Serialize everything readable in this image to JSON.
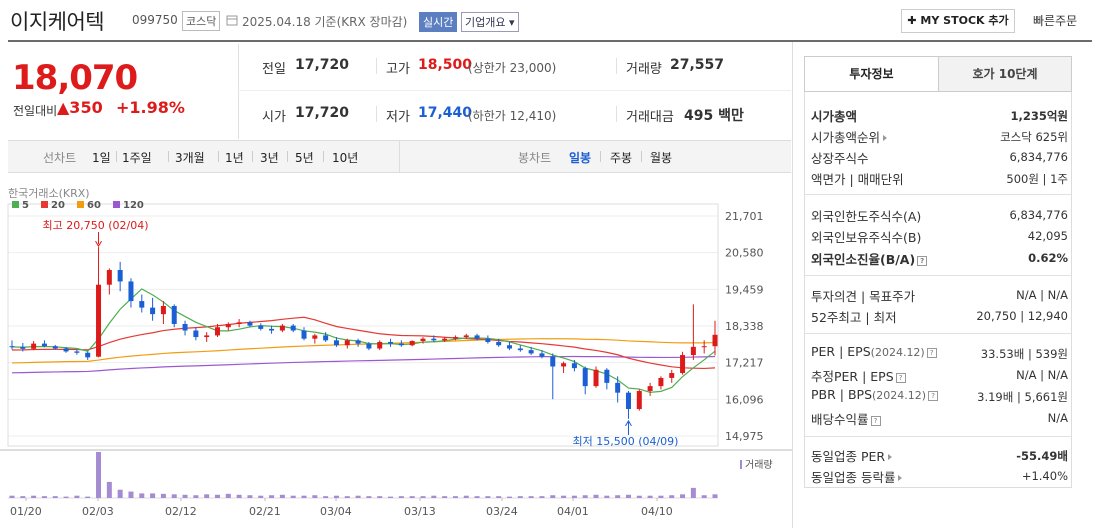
{
  "header": {
    "company": "이지케어텍",
    "code": "099750",
    "market_badge": "코스닥",
    "date_text": "2025.04.18 기준(KRX 장마감)",
    "realtime_badge": "실시간",
    "overview_badge": "기업개요 ▾",
    "mystock_button": "✚ MY STOCK 추가",
    "quick_order": "빠른주문"
  },
  "price": {
    "current": "18,070",
    "change_label": "전일대비",
    "change_value": "▲350",
    "change_pct": "+1.98%"
  },
  "quote": {
    "prev_close_label": "전일",
    "prev_close": "17,720",
    "high_label": "고가",
    "high": "18,500",
    "upper_limit": "(상한가 23,000)",
    "volume_label": "거래량",
    "volume": "27,557",
    "open_label": "시가",
    "open": "17,720",
    "low_label": "저가",
    "low": "17,440",
    "lower_limit": "(하한가 12,410)",
    "amount_label": "거래대금",
    "amount": "495 백만"
  },
  "periods": {
    "line_chart_label": "선차트",
    "line_items": [
      "1일",
      "1주일",
      "3개월",
      "1년",
      "3년",
      "5년",
      "10년"
    ],
    "candle_chart_label": "봉차트",
    "candle_items": [
      "일봉",
      "주봉",
      "월봉"
    ]
  },
  "tabs": {
    "invest": "투자정보",
    "orderbook": "호가 10단계"
  },
  "info": {
    "mcap_label": "시가총액",
    "mcap": "1,235억원",
    "mcap_rank_label": "시가총액순위",
    "mcap_rank": "코스닥 625위",
    "shares_label": "상장주식수",
    "shares": "6,834,776",
    "par_label": "액면가 | 매매단위",
    "par": "500원 | 1주",
    "foreign_limit_label": "외국인한도주식수(A)",
    "foreign_limit": "6,834,776",
    "foreign_hold_label": "외국인보유주식수(B)",
    "foreign_hold": "42,095",
    "foreign_rate_label": "외국인소진율(B/A)",
    "foreign_rate": "0.62%",
    "opinion_label": "투자의견 | 목표주가",
    "opinion": "N/A | N/A",
    "w52_label": "52주최고 | 최저",
    "w52": "20,750 | 12,940",
    "per_label": "PER | EPS",
    "per_period": "(2024.12)",
    "per": "33.53배 | 539원",
    "est_per_label": "추정PER | EPS",
    "est_per": "N/A | N/A",
    "pbr_label": "PBR | BPS",
    "pbr_period": "(2024.12)",
    "pbr": "3.19배 | 5,661원",
    "div_label": "배당수익률",
    "div": "N/A",
    "sector_per_label": "동일업종 PER",
    "sector_per": "-55.49배",
    "sector_chg_label": "동일업종 등락률",
    "sector_chg": "+1.40%"
  },
  "colors": {
    "up": "#dd1b1b",
    "down": "#1a5fd3",
    "ma5": "#4caf50",
    "ma20": "#e53935",
    "ma60": "#f39c12",
    "ma120": "#9b59d0",
    "volume": "#a58bd1"
  },
  "chart_data": {
    "type": "candlestick",
    "source": "한국거래소(KRX)",
    "legend": [
      "5",
      "20",
      "60",
      "120"
    ],
    "y_ticks": [
      "21,701",
      "20,580",
      "19,459",
      "18,338",
      "17,217",
      "16,096",
      "14,975"
    ],
    "ylim": [
      14975,
      21701
    ],
    "x_ticks": [
      "01/20",
      "02/03",
      "02/12",
      "02/21",
      "03/04",
      "03/13",
      "03/24",
      "04/01",
      "04/10"
    ],
    "high_annotation": "최고 20,750 (02/04)",
    "low_annotation": "최저 15,500 (04/09)",
    "volume_label": "거래량",
    "candles": [
      [
        17720,
        17900,
        17620,
        17700
      ],
      [
        17700,
        17820,
        17560,
        17640
      ],
      [
        17640,
        17880,
        17600,
        17800
      ],
      [
        17800,
        17900,
        17690,
        17720
      ],
      [
        17720,
        17760,
        17610,
        17650
      ],
      [
        17650,
        17700,
        17520,
        17560
      ],
      [
        17560,
        17620,
        17460,
        17520
      ],
      [
        17520,
        17560,
        17300,
        17380
      ],
      [
        17400,
        20750,
        17380,
        19600
      ],
      [
        19600,
        20100,
        19300,
        20050
      ],
      [
        20050,
        20300,
        19400,
        19700
      ],
      [
        19700,
        19800,
        18900,
        19100
      ],
      [
        19100,
        19300,
        18750,
        18900
      ],
      [
        18900,
        19200,
        18500,
        18700
      ],
      [
        18700,
        19100,
        18400,
        18950
      ],
      [
        18950,
        19000,
        18300,
        18400
      ],
      [
        18400,
        18500,
        18050,
        18200
      ],
      [
        18200,
        18300,
        17900,
        18000
      ],
      [
        18000,
        18150,
        17850,
        18050
      ],
      [
        18050,
        18400,
        18000,
        18300
      ],
      [
        18300,
        18450,
        18200,
        18400
      ],
      [
        18400,
        18550,
        18300,
        18450
      ],
      [
        18450,
        18500,
        18300,
        18350
      ],
      [
        18350,
        18420,
        18200,
        18250
      ],
      [
        18250,
        18350,
        18100,
        18200
      ],
      [
        18200,
        18400,
        18150,
        18350
      ],
      [
        18350,
        18400,
        18150,
        18200
      ],
      [
        18200,
        18300,
        17900,
        17950
      ],
      [
        17950,
        18100,
        17800,
        18050
      ],
      [
        18050,
        18150,
        17850,
        17900
      ],
      [
        17900,
        18000,
        17700,
        17750
      ],
      [
        17750,
        17950,
        17650,
        17900
      ],
      [
        17900,
        17950,
        17700,
        17800
      ],
      [
        17800,
        17850,
        17600,
        17650
      ],
      [
        17650,
        17900,
        17600,
        17850
      ],
      [
        17850,
        17950,
        17700,
        17800
      ],
      [
        17800,
        17900,
        17700,
        17750
      ],
      [
        17750,
        17900,
        17720,
        17880
      ],
      [
        17880,
        18000,
        17800,
        17950
      ],
      [
        17950,
        18050,
        17850,
        17900
      ],
      [
        17900,
        18000,
        17850,
        17950
      ],
      [
        17950,
        18050,
        17900,
        18000
      ],
      [
        18000,
        18100,
        17950,
        18050
      ],
      [
        18050,
        18100,
        17900,
        17950
      ],
      [
        17950,
        18050,
        17800,
        17850
      ],
      [
        17850,
        17950,
        17700,
        17750
      ],
      [
        17750,
        17850,
        17600,
        17650
      ],
      [
        17650,
        17750,
        17550,
        17600
      ],
      [
        17600,
        17700,
        17450,
        17500
      ],
      [
        17500,
        17600,
        17350,
        17400
      ],
      [
        17400,
        17500,
        16100,
        17100
      ],
      [
        17100,
        17250,
        16900,
        17200
      ],
      [
        17200,
        17300,
        16950,
        17050
      ],
      [
        17050,
        17100,
        16250,
        16500
      ],
      [
        16500,
        17100,
        16450,
        17000
      ],
      [
        17000,
        17050,
        16400,
        16600
      ],
      [
        16600,
        16800,
        16000,
        16300
      ],
      [
        16300,
        16350,
        15500,
        15800
      ],
      [
        15800,
        16400,
        15750,
        16350
      ],
      [
        16350,
        16600,
        16200,
        16500
      ],
      [
        16500,
        16800,
        16400,
        16750
      ],
      [
        16750,
        17000,
        16600,
        16900
      ],
      [
        16900,
        17550,
        16850,
        17450
      ],
      [
        17450,
        19000,
        17300,
        17700
      ],
      [
        17700,
        17900,
        17500,
        17720
      ],
      [
        17720,
        18500,
        17440,
        18070
      ]
    ],
    "volumes": [
      0.05,
      0.04,
      0.05,
      0.04,
      0.04,
      0.03,
      0.05,
      0.03,
      1.0,
      0.35,
      0.18,
      0.14,
      0.1,
      0.1,
      0.09,
      0.08,
      0.07,
      0.06,
      0.08,
      0.07,
      0.09,
      0.07,
      0.06,
      0.05,
      0.06,
      0.07,
      0.05,
      0.05,
      0.06,
      0.04,
      0.05,
      0.04,
      0.05,
      0.04,
      0.04,
      0.03,
      0.04,
      0.04,
      0.04,
      0.05,
      0.04,
      0.04,
      0.05,
      0.04,
      0.04,
      0.04,
      0.03,
      0.04,
      0.04,
      0.04,
      0.06,
      0.05,
      0.05,
      0.06,
      0.07,
      0.05,
      0.06,
      0.07,
      0.05,
      0.05,
      0.05,
      0.06,
      0.08,
      0.22,
      0.06,
      0.08
    ]
  }
}
